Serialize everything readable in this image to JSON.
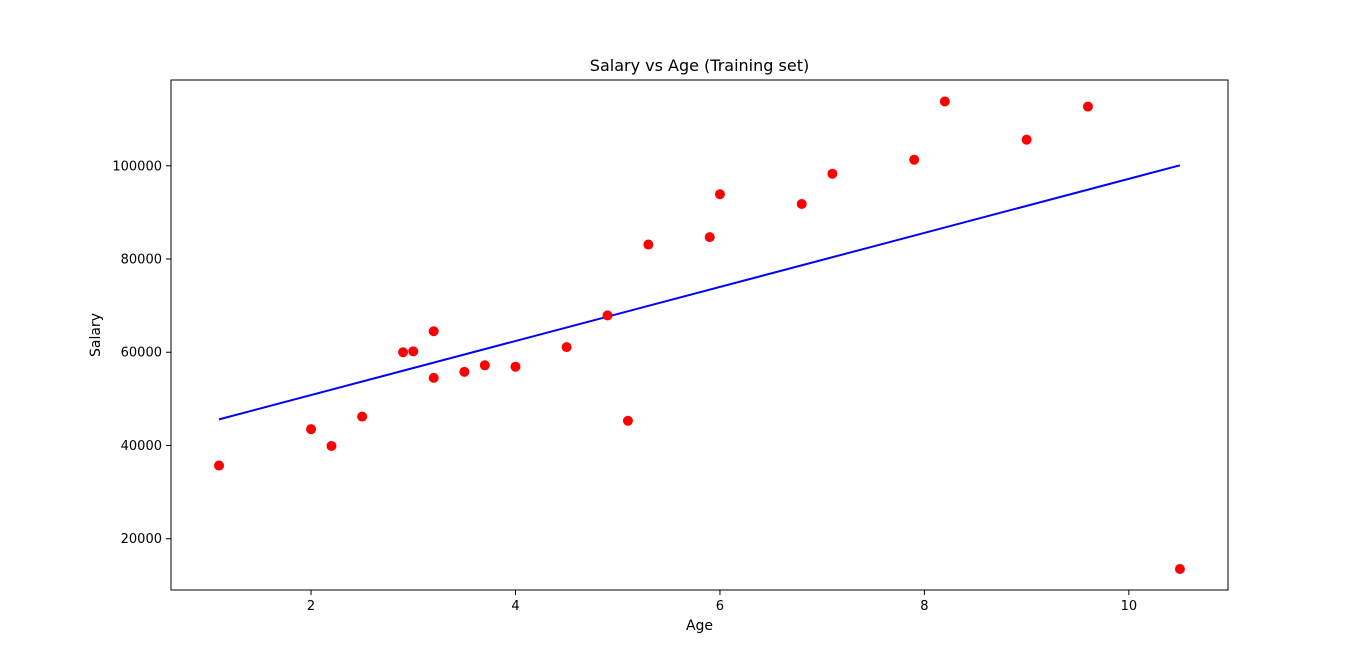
{
  "chart_data": {
    "type": "scatter",
    "title": "Salary vs Age (Training set)",
    "xlabel": "Age",
    "ylabel": "Salary",
    "xlim": [
      0.63,
      10.97
    ],
    "ylim": [
      9000,
      118400
    ],
    "x_ticks": [
      2,
      4,
      6,
      8,
      10
    ],
    "y_ticks": [
      20000,
      40000,
      60000,
      80000,
      100000
    ],
    "grid": false,
    "legend": "none",
    "colors": {
      "points": "#ff0000",
      "line": "#0000ff",
      "frame": "#000000"
    },
    "series": [
      {
        "type": "scatter",
        "x": [
          1.1,
          2.0,
          2.2,
          2.5,
          2.9,
          3.0,
          3.2,
          3.2,
          3.5,
          3.7,
          4.0,
          4.5,
          4.9,
          5.1,
          5.3,
          5.9,
          6.0,
          6.8,
          7.1,
          7.9,
          8.2,
          9.0,
          9.6,
          10.5
        ],
        "y": [
          35700,
          43500,
          39900,
          46200,
          60000,
          60200,
          54500,
          64500,
          55800,
          57200,
          56900,
          61100,
          67900,
          45300,
          83100,
          84700,
          93900,
          91800,
          98300,
          101300,
          113800,
          105600,
          112700,
          13500
        ]
      },
      {
        "type": "line",
        "x": [
          1.1,
          10.5
        ],
        "y": [
          45600,
          100100
        ]
      }
    ]
  }
}
